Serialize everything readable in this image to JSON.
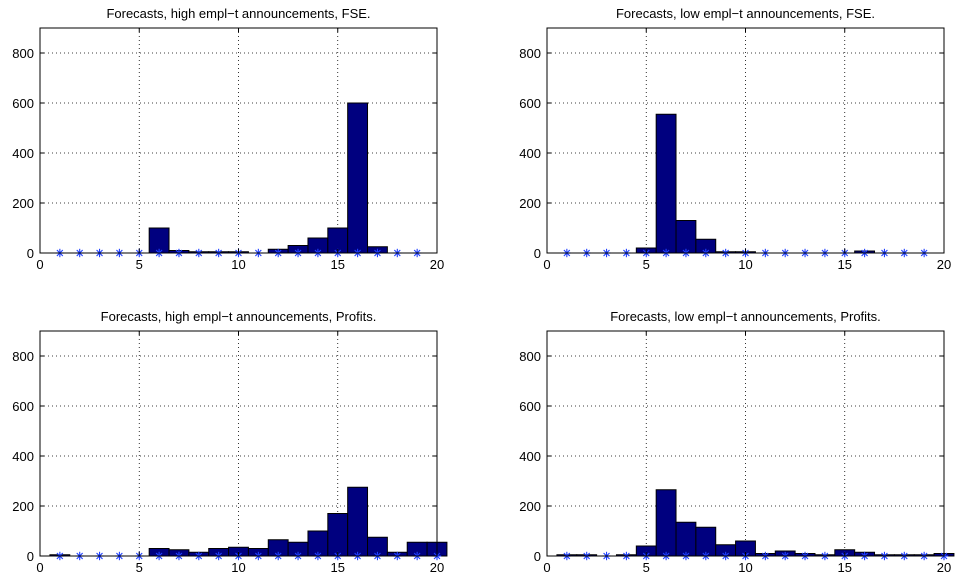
{
  "chart_data": [
    {
      "type": "bar",
      "title": "Forecasts, high empl−t announcements, FSE.",
      "xlim": [
        0,
        20
      ],
      "ylim": [
        0,
        900
      ],
      "xticks": [
        0,
        5,
        10,
        15,
        20
      ],
      "yticks": [
        0,
        200,
        400,
        600,
        800
      ],
      "grid": true,
      "bar_color": "#00007f",
      "marker_color": "#1f3fff",
      "x": [
        1,
        2,
        3,
        4,
        5,
        6,
        7,
        8,
        9,
        10,
        11,
        12,
        13,
        14,
        15,
        16,
        17,
        18,
        19
      ],
      "values": [
        0,
        0,
        0,
        0,
        0,
        100,
        10,
        5,
        5,
        5,
        0,
        15,
        30,
        60,
        100,
        600,
        25,
        0,
        0
      ]
    },
    {
      "type": "bar",
      "title": "Forecasts, low empl−t announcements, FSE.",
      "xlim": [
        0,
        20
      ],
      "ylim": [
        0,
        900
      ],
      "xticks": [
        0,
        5,
        10,
        15,
        20
      ],
      "yticks": [
        0,
        200,
        400,
        600,
        800
      ],
      "grid": true,
      "bar_color": "#00007f",
      "marker_color": "#1f3fff",
      "x": [
        1,
        2,
        3,
        4,
        5,
        6,
        7,
        8,
        9,
        10,
        11,
        12,
        13,
        14,
        15,
        16,
        17,
        18,
        19
      ],
      "values": [
        0,
        0,
        0,
        0,
        20,
        555,
        130,
        55,
        5,
        5,
        0,
        0,
        0,
        0,
        0,
        8,
        0,
        0,
        0
      ]
    },
    {
      "type": "bar",
      "title": "Forecasts, high empl−t announcements, Profits.",
      "xlim": [
        0,
        20
      ],
      "ylim": [
        0,
        900
      ],
      "xticks": [
        0,
        5,
        10,
        15,
        20
      ],
      "yticks": [
        0,
        200,
        400,
        600,
        800
      ],
      "grid": true,
      "bar_color": "#00007f",
      "marker_color": "#1f3fff",
      "x": [
        1,
        2,
        3,
        4,
        5,
        6,
        7,
        8,
        9,
        10,
        11,
        12,
        13,
        14,
        15,
        16,
        17,
        18,
        19,
        20
      ],
      "values": [
        5,
        0,
        0,
        0,
        0,
        30,
        25,
        15,
        30,
        35,
        30,
        65,
        55,
        100,
        170,
        275,
        75,
        15,
        55,
        55
      ]
    },
    {
      "type": "bar",
      "title": "Forecasts, low empl−t announcements, Profits.",
      "xlim": [
        0,
        20
      ],
      "ylim": [
        0,
        900
      ],
      "xticks": [
        0,
        5,
        10,
        15,
        20
      ],
      "yticks": [
        0,
        200,
        400,
        600,
        800
      ],
      "grid": true,
      "bar_color": "#00007f",
      "marker_color": "#1f3fff",
      "x": [
        1,
        2,
        3,
        4,
        5,
        6,
        7,
        8,
        9,
        10,
        11,
        12,
        13,
        14,
        15,
        16,
        17,
        18,
        19,
        20
      ],
      "values": [
        5,
        5,
        0,
        5,
        40,
        265,
        135,
        115,
        45,
        60,
        10,
        20,
        10,
        5,
        25,
        15,
        5,
        5,
        5,
        10
      ]
    }
  ]
}
